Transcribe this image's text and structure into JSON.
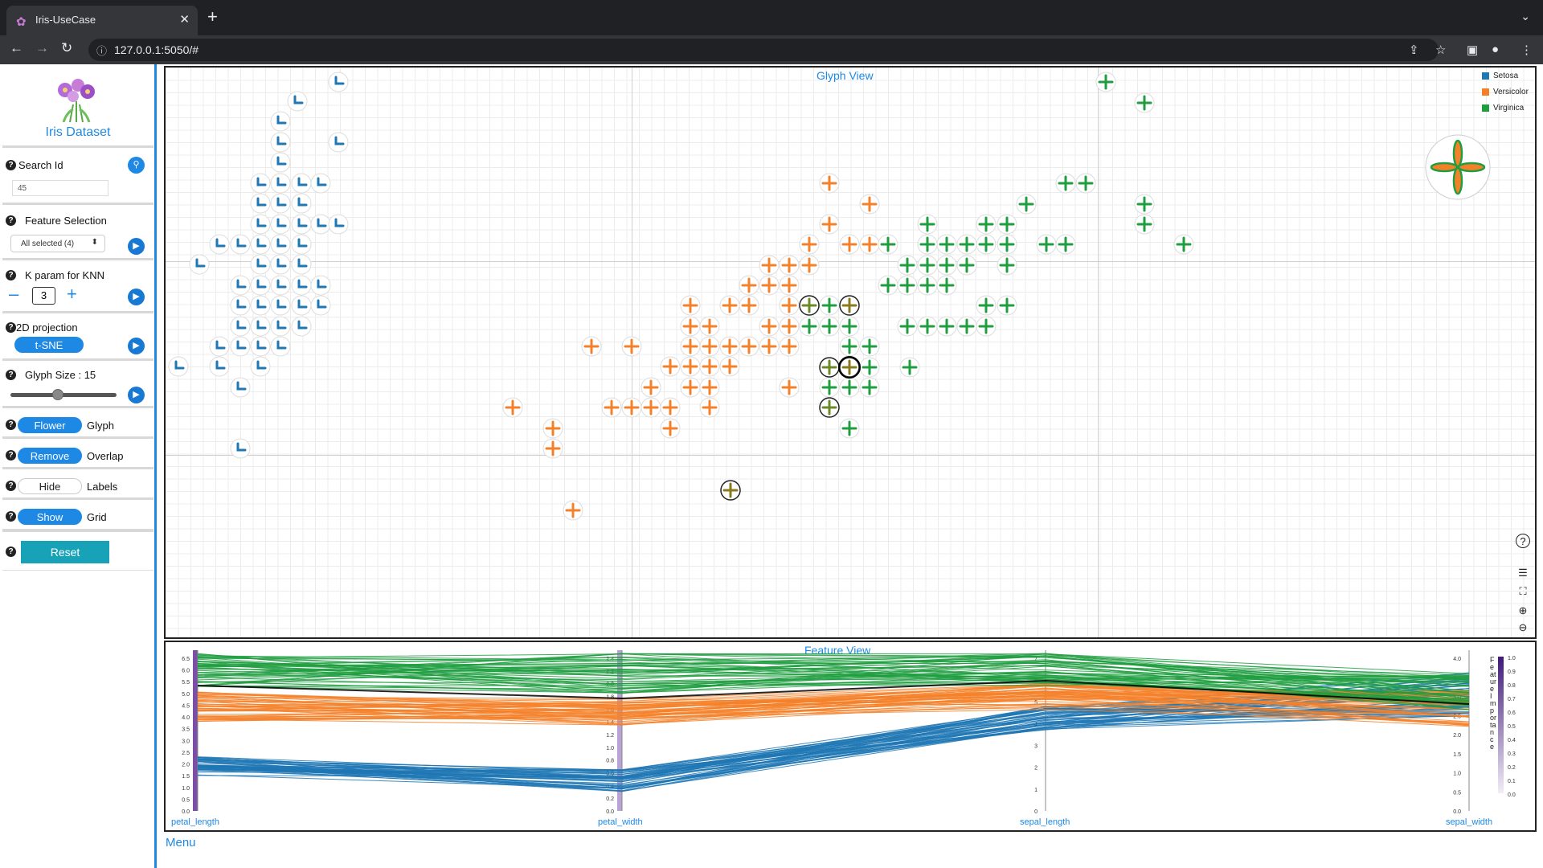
{
  "browser": {
    "tab_title": "Iris-UseCase",
    "url": "127.0.0.1:5050/#"
  },
  "sidebar": {
    "logo_text": "Iris Dataset",
    "search": {
      "label": "Search Id",
      "value": "45"
    },
    "feature_selection": {
      "label": "Feature Selection",
      "value": "All selected (4)"
    },
    "knn": {
      "label": "K param for KNN",
      "value": "3"
    },
    "projection": {
      "label": "2D projection",
      "value": "t-SNE"
    },
    "glyph_size": {
      "label": "Glyph Size : 15",
      "slider_fraction": 0.45
    },
    "glyph": {
      "toggle": "Flower",
      "label": "Glyph"
    },
    "overlap": {
      "toggle": "Remove",
      "label": "Overlap"
    },
    "labels": {
      "toggle": "Hide",
      "label": "Labels"
    },
    "grid": {
      "toggle": "Show",
      "label": "Grid"
    },
    "reset_label": "Reset"
  },
  "glyph_view": {
    "title": "Glyph View",
    "legend": [
      {
        "name": "Setosa",
        "color": "#1f77b4"
      },
      {
        "name": "Versicolor",
        "color": "#f4812a"
      },
      {
        "name": "Virginica",
        "color": "#1f9e3f"
      }
    ]
  },
  "feature_view": {
    "title": "Feature View",
    "axes": [
      "petal_length",
      "petal_width",
      "sepal_length",
      "sepal_width"
    ],
    "axis_ticks": {
      "petal_length": [
        "6.5",
        "6.0",
        "5.5",
        "5.0",
        "4.5",
        "4.0",
        "3.5",
        "3.0",
        "2.5",
        "2.0",
        "1.5",
        "1.0",
        "0.5",
        "0.0"
      ],
      "petal_width": [
        "2.4",
        "2.2",
        "2.0",
        "1.8",
        "1.6",
        "1.4",
        "1.2",
        "1.0",
        "0.8",
        "0.6",
        "0.4",
        "0.2",
        "0.0"
      ],
      "sepal_length": [
        "7",
        "6",
        "5",
        "4",
        "3",
        "2",
        "1",
        "0"
      ],
      "sepal_width": [
        "4.0",
        "3.5",
        "3.0",
        "2.5",
        "2.0",
        "1.5",
        "1.0",
        "0.5",
        "0.0"
      ]
    },
    "importance_label": "Feature Importance",
    "importance_ticks": [
      "1.0",
      "0.9",
      "0.8",
      "0.7",
      "0.6",
      "0.5",
      "0.4",
      "0.3",
      "0.2",
      "0.1",
      "0.0"
    ]
  },
  "menu_label": "Menu"
}
